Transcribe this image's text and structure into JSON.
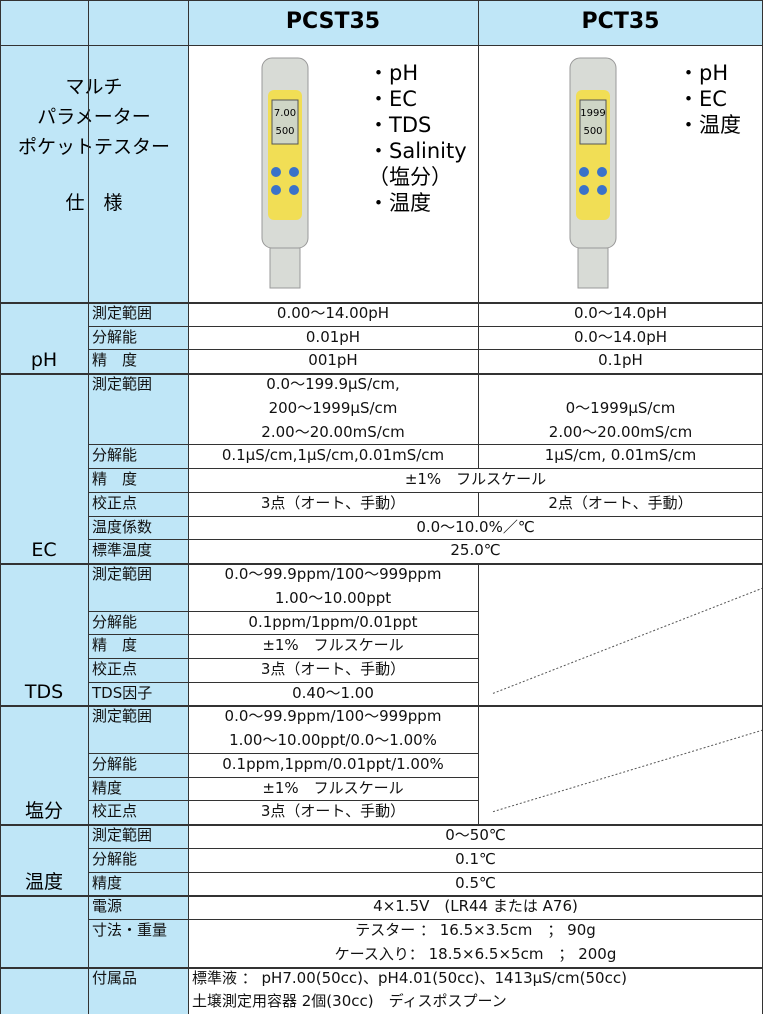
{
  "header": {
    "models": [
      "PCST35",
      "PCT35"
    ],
    "title_lines": [
      "マルチ",
      "パラメーター",
      "ポケットテスター",
      "仕　様"
    ]
  },
  "device_readings": [
    [
      "7.00",
      "500"
    ],
    [
      "1999",
      "500"
    ]
  ],
  "features": [
    [
      "・pH",
      "・EC",
      "・TDS",
      "・Salinity",
      "（塩分）",
      "・温度"
    ],
    [
      "・pH",
      "・EC",
      "・温度"
    ]
  ],
  "sections": [
    {
      "name": "pH",
      "rows": [
        {
          "label": "測定範囲",
          "cells": [
            [
              "0.00～14.00pH"
            ],
            [
              "0.0～14.0pH"
            ]
          ]
        },
        {
          "label": "分解能",
          "cells": [
            [
              "0.01pH"
            ],
            [
              "0.0～14.0pH"
            ]
          ]
        },
        {
          "label": "精　度",
          "cells": [
            [
              "001pH"
            ],
            [
              "0.1pH"
            ]
          ]
        }
      ]
    },
    {
      "name": "EC",
      "rows": [
        {
          "label": "測定範囲",
          "cells": [
            [
              "0.0～199.9μS/cm,",
              "200～1999μS/cm",
              "2.00～20.00mS/cm"
            ],
            [
              "0～1999μS/cm",
              "2.00～20.00mS/cm"
            ]
          ]
        },
        {
          "label": "分解能",
          "cells": [
            [
              "0.1μS/cm,1μS/cm,0.01mS/cm"
            ],
            [
              "1μS/cm, 0.01mS/cm"
            ]
          ]
        },
        {
          "label": "精　度",
          "span": [
            "±1%　フルスケール"
          ]
        },
        {
          "label": "校正点",
          "cells": [
            [
              "3点（オート、手動）"
            ],
            [
              "2点（オート、手動）"
            ]
          ]
        },
        {
          "label": "温度係数",
          "span": [
            "0.0～10.0%／℃"
          ]
        },
        {
          "label": "標準温度",
          "span": [
            "25.0℃"
          ]
        }
      ]
    },
    {
      "name": "TDS",
      "rows": [
        {
          "label": "測定範囲",
          "cells": [
            [
              "0.0～99.9ppm/100～999ppm",
              "1.00～10.00ppt"
            ],
            null
          ]
        },
        {
          "label": "分解能",
          "cells": [
            [
              "0.1ppm/1ppm/0.01ppt"
            ],
            null
          ]
        },
        {
          "label": "精　度",
          "cells": [
            [
              "±1%　フルスケール"
            ],
            null
          ]
        },
        {
          "label": "校正点",
          "cells": [
            [
              "3点（オート、手動）"
            ],
            null
          ]
        },
        {
          "label": "TDS因子",
          "cells": [
            [
              "0.40～1.00"
            ],
            null
          ]
        }
      ]
    },
    {
      "name": "塩分",
      "rows": [
        {
          "label": "測定範囲",
          "cells": [
            [
              "0.0～99.9ppm/100～999ppm",
              "1.00～10.00ppt/0.0～1.00%"
            ],
            null
          ]
        },
        {
          "label": "分解能",
          "cells": [
            [
              "0.1ppm,1ppm/0.01ppt/1.00%"
            ],
            null
          ]
        },
        {
          "label": "精度",
          "cells": [
            [
              "±1%　フルスケール"
            ],
            null
          ]
        },
        {
          "label": "校正点",
          "cells": [
            [
              "3点（オート、手動）"
            ],
            null
          ]
        }
      ]
    },
    {
      "name": "温度",
      "rows": [
        {
          "label": "測定範囲",
          "span": [
            "0～50℃"
          ]
        },
        {
          "label": "分解能",
          "span": [
            "0.1℃"
          ]
        },
        {
          "label": "精度",
          "span": [
            "0.5℃"
          ]
        }
      ]
    },
    {
      "rows": [
        {
          "label": "電源",
          "span": [
            "4×1.5V　(LR44 または A76)"
          ]
        },
        {
          "label": "寸法・重量",
          "span": [
            "テスター ： 16.5×3.5cm　；  90g",
            "ケース入り： 18.5×6.5×5cm　；  200g"
          ]
        }
      ]
    }
  ],
  "accessories": {
    "label": "付属品",
    "lines": [
      "標準液 ： pH7.00(50cc)、pH4.01(50cc)、1413μS/cm(50cc)",
      "土壌測定用容器 2個(30cc)　ディスポスプーン"
    ]
  }
}
